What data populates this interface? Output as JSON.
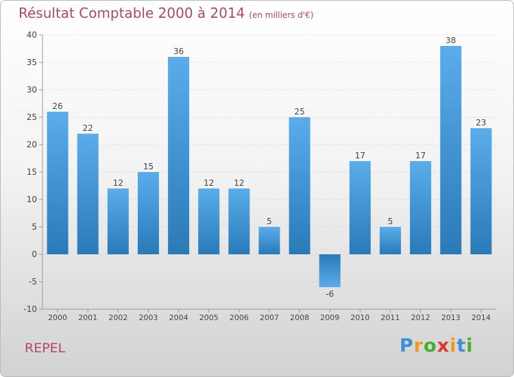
{
  "header": {
    "title": "Résultat Comptable 2000 à 2014",
    "subtitle": "(en milliers d'€)"
  },
  "footer": {
    "town": "REPEL",
    "logo": {
      "letters": [
        "P",
        "r",
        "o",
        "x",
        "i",
        "t",
        "i"
      ],
      "colors": [
        "#3b8fd9",
        "#f09a1a",
        "#43b02a",
        "#e6332a",
        "#f09a1a",
        "#3b8fd9",
        "#43b02a"
      ]
    }
  },
  "chart_data": {
    "type": "bar",
    "title": "Résultat Comptable 2000 à 2014",
    "subtitle": "(en milliers d'€)",
    "xlabel": "",
    "ylabel": "",
    "categories": [
      "2000",
      "2001",
      "2002",
      "2003",
      "2004",
      "2005",
      "2006",
      "2007",
      "2008",
      "2009",
      "2010",
      "2011",
      "2012",
      "2013",
      "2014"
    ],
    "values": [
      26,
      22,
      12,
      15,
      36,
      12,
      12,
      5,
      25,
      -6,
      17,
      5,
      17,
      38,
      23
    ],
    "ylim": [
      -10,
      40
    ],
    "yticks": [
      -10,
      -5,
      0,
      5,
      10,
      15,
      20,
      25,
      30,
      35,
      40
    ],
    "grid": true,
    "colors": {
      "bar_light": "#5aaceb",
      "bar_dark": "#2a7ab8",
      "grid": "#cfcfcf",
      "axis": "#999999",
      "label": "#444444"
    }
  }
}
